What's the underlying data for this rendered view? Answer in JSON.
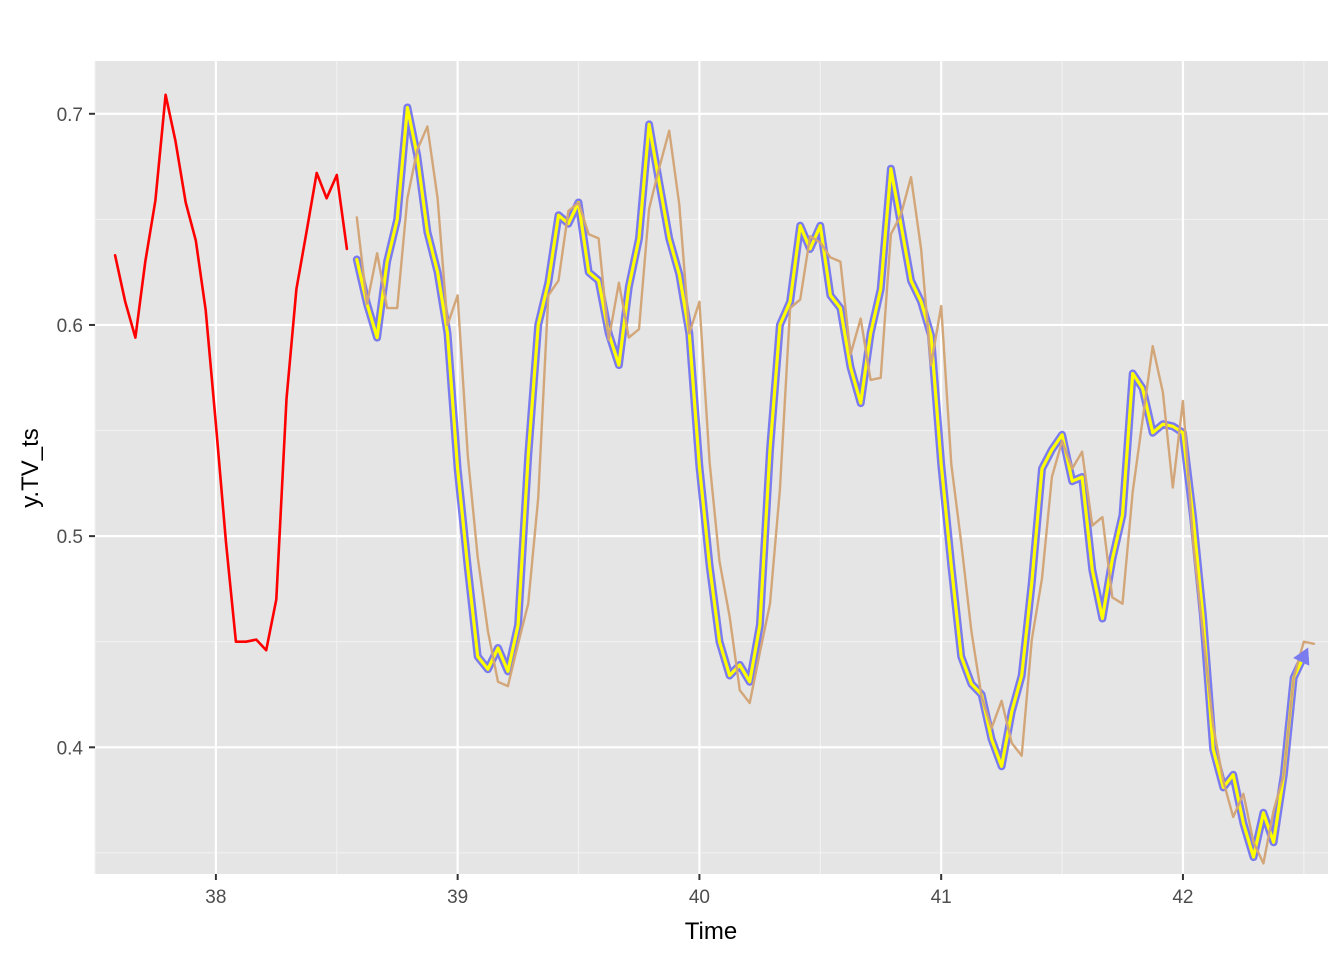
{
  "chart_data": {
    "type": "line",
    "xlabel": "Time",
    "ylabel": "y.TV_ts",
    "xlim": [
      37.5,
      42.6
    ],
    "ylim": [
      0.34,
      0.725
    ],
    "x_ticks": [
      38,
      39,
      40,
      41,
      42
    ],
    "y_ticks": [
      0.4,
      0.5,
      0.6,
      0.7
    ],
    "x_tick_labels": [
      "38",
      "39",
      "40",
      "41",
      "42"
    ],
    "y_tick_labels": [
      "0.4",
      "0.5",
      "0.6",
      "0.7"
    ],
    "grid": true,
    "panel_background": "#e5e5e5",
    "series": [
      {
        "color": "#ff0000",
        "x": [
          37.583,
          37.625,
          37.667,
          37.708,
          37.75,
          37.792,
          37.833,
          37.875,
          37.917,
          37.958,
          38.0,
          38.042,
          38.083,
          38.125,
          38.167,
          38.208,
          38.25,
          38.292,
          38.333,
          38.375,
          38.417,
          38.458,
          38.5,
          38.542
        ],
        "y": [
          0.633,
          0.611,
          0.594,
          0.63,
          0.659,
          0.709,
          0.687,
          0.658,
          0.64,
          0.607,
          0.553,
          0.497,
          0.45,
          0.45,
          0.451,
          0.446,
          0.47,
          0.565,
          0.617,
          0.644,
          0.672,
          0.66,
          0.671,
          0.636
        ]
      },
      {
        "color": "#7b7bf0",
        "x": [
          38.583,
          38.625,
          38.667,
          38.708,
          38.75,
          38.792,
          38.833,
          38.875,
          38.917,
          38.958,
          39.0,
          39.042,
          39.083,
          39.125,
          39.167,
          39.208,
          39.25,
          39.292,
          39.333,
          39.375,
          39.417,
          39.458,
          39.5,
          39.542,
          39.583,
          39.625,
          39.667,
          39.708,
          39.75,
          39.792,
          39.833,
          39.875,
          39.917,
          39.958,
          40.0,
          40.042,
          40.083,
          40.125,
          40.167,
          40.208,
          40.25,
          40.292,
          40.333,
          40.375,
          40.417,
          40.458,
          40.5,
          40.542,
          40.583,
          40.625,
          40.667,
          40.708,
          40.75,
          40.792,
          40.833,
          40.875,
          40.917,
          40.958,
          41.0,
          41.042,
          41.083,
          41.125,
          41.167,
          41.208,
          41.25,
          41.292,
          41.333,
          41.375,
          41.417,
          41.458,
          41.5,
          41.542,
          41.583,
          41.625,
          41.667,
          41.708,
          41.75,
          41.792,
          41.833,
          41.875,
          41.917,
          41.958,
          42.0,
          42.042,
          42.083,
          42.125,
          42.167,
          42.208,
          42.25,
          42.292,
          42.333,
          42.375,
          42.417,
          42.458,
          42.5
        ],
        "y": [
          0.631,
          0.61,
          0.594,
          0.63,
          0.65,
          0.703,
          0.68,
          0.644,
          0.625,
          0.596,
          0.532,
          0.485,
          0.443,
          0.437,
          0.447,
          0.436,
          0.458,
          0.538,
          0.6,
          0.62,
          0.652,
          0.648,
          0.658,
          0.625,
          0.621,
          0.596,
          0.581,
          0.618,
          0.641,
          0.695,
          0.668,
          0.641,
          0.624,
          0.596,
          0.533,
          0.486,
          0.45,
          0.434,
          0.439,
          0.431,
          0.458,
          0.541,
          0.6,
          0.611,
          0.647,
          0.636,
          0.647,
          0.614,
          0.608,
          0.58,
          0.563,
          0.596,
          0.617,
          0.674,
          0.648,
          0.621,
          0.611,
          0.595,
          0.534,
          0.486,
          0.443,
          0.43,
          0.425,
          0.404,
          0.391,
          0.417,
          0.434,
          0.478,
          0.532,
          0.541,
          0.548,
          0.526,
          0.528,
          0.484,
          0.461,
          0.489,
          0.51,
          0.577,
          0.57,
          0.549,
          0.553,
          0.552,
          0.549,
          0.509,
          0.462,
          0.399,
          0.381,
          0.387,
          0.364,
          0.348,
          0.369,
          0.355,
          0.387,
          0.433,
          0.443
        ]
      },
      {
        "color": "#ffff00",
        "x": [
          38.583,
          38.625,
          38.667,
          38.708,
          38.75,
          38.792,
          38.833,
          38.875,
          38.917,
          38.958,
          39.0,
          39.042,
          39.083,
          39.125,
          39.167,
          39.208,
          39.25,
          39.292,
          39.333,
          39.375,
          39.417,
          39.458,
          39.5,
          39.542,
          39.583,
          39.625,
          39.667,
          39.708,
          39.75,
          39.792,
          39.833,
          39.875,
          39.917,
          39.958,
          40.0,
          40.042,
          40.083,
          40.125,
          40.167,
          40.208,
          40.25,
          40.292,
          40.333,
          40.375,
          40.417,
          40.458,
          40.5,
          40.542,
          40.583,
          40.625,
          40.667,
          40.708,
          40.75,
          40.792,
          40.833,
          40.875,
          40.917,
          40.958,
          41.0,
          41.042,
          41.083,
          41.125,
          41.167,
          41.208,
          41.25,
          41.292,
          41.333,
          41.375,
          41.417,
          41.458,
          41.5,
          41.542,
          41.583,
          41.625,
          41.667,
          41.708,
          41.75,
          41.792,
          41.833,
          41.875,
          41.917,
          41.958,
          42.0,
          42.042,
          42.083,
          42.125,
          42.167,
          42.208,
          42.25,
          42.292,
          42.333,
          42.375,
          42.417,
          42.458,
          42.5
        ],
        "y": [
          0.631,
          0.61,
          0.594,
          0.63,
          0.65,
          0.703,
          0.68,
          0.644,
          0.625,
          0.596,
          0.532,
          0.485,
          0.443,
          0.437,
          0.447,
          0.436,
          0.458,
          0.538,
          0.6,
          0.62,
          0.652,
          0.648,
          0.658,
          0.625,
          0.621,
          0.596,
          0.581,
          0.618,
          0.641,
          0.695,
          0.668,
          0.641,
          0.624,
          0.596,
          0.533,
          0.486,
          0.45,
          0.434,
          0.439,
          0.431,
          0.458,
          0.541,
          0.6,
          0.611,
          0.647,
          0.636,
          0.647,
          0.614,
          0.608,
          0.58,
          0.563,
          0.596,
          0.617,
          0.674,
          0.648,
          0.621,
          0.611,
          0.595,
          0.534,
          0.486,
          0.443,
          0.43,
          0.425,
          0.404,
          0.391,
          0.417,
          0.434,
          0.478,
          0.532,
          0.541,
          0.548,
          0.526,
          0.528,
          0.484,
          0.461,
          0.489,
          0.51,
          0.577,
          0.57,
          0.549,
          0.553,
          0.552,
          0.549,
          0.509,
          0.462,
          0.399,
          0.381,
          0.387,
          0.364,
          0.348,
          0.369,
          0.355,
          0.387,
          0.433,
          0.443
        ]
      },
      {
        "color": "#d2a679",
        "x": [
          38.583,
          38.625,
          38.667,
          38.708,
          38.75,
          38.792,
          38.833,
          38.875,
          38.917,
          38.958,
          39.0,
          39.042,
          39.083,
          39.125,
          39.167,
          39.208,
          39.25,
          39.292,
          39.333,
          39.375,
          39.417,
          39.458,
          39.5,
          39.542,
          39.583,
          39.625,
          39.667,
          39.708,
          39.75,
          39.792,
          39.833,
          39.875,
          39.917,
          39.958,
          40.0,
          40.042,
          40.083,
          40.125,
          40.167,
          40.208,
          40.25,
          40.292,
          40.333,
          40.375,
          40.417,
          40.458,
          40.5,
          40.542,
          40.583,
          40.625,
          40.667,
          40.708,
          40.75,
          40.792,
          40.833,
          40.875,
          40.917,
          40.958,
          41.0,
          41.042,
          41.083,
          41.125,
          41.167,
          41.208,
          41.25,
          41.292,
          41.333,
          41.375,
          41.417,
          41.458,
          41.5,
          41.542,
          41.583,
          41.625,
          41.667,
          41.708,
          41.75,
          41.792,
          41.833,
          41.875,
          41.917,
          41.958,
          42.0,
          42.042,
          42.083,
          42.125,
          42.167,
          42.208,
          42.25,
          42.292,
          42.333,
          42.375,
          42.417,
          42.458,
          42.5,
          42.542
        ],
        "y": [
          0.651,
          0.61,
          0.634,
          0.608,
          0.608,
          0.66,
          0.683,
          0.694,
          0.66,
          0.6,
          0.614,
          0.538,
          0.49,
          0.455,
          0.431,
          0.429,
          0.449,
          0.468,
          0.518,
          0.614,
          0.621,
          0.654,
          0.658,
          0.643,
          0.641,
          0.593,
          0.62,
          0.594,
          0.598,
          0.655,
          0.674,
          0.692,
          0.657,
          0.596,
          0.611,
          0.535,
          0.488,
          0.462,
          0.427,
          0.421,
          0.445,
          0.468,
          0.522,
          0.608,
          0.612,
          0.642,
          0.639,
          0.632,
          0.63,
          0.586,
          0.603,
          0.574,
          0.575,
          0.643,
          0.652,
          0.67,
          0.636,
          0.581,
          0.609,
          0.534,
          0.497,
          0.455,
          0.424,
          0.409,
          0.422,
          0.402,
          0.396,
          0.451,
          0.48,
          0.528,
          0.545,
          0.532,
          0.54,
          0.505,
          0.509,
          0.471,
          0.468,
          0.521,
          0.555,
          0.59,
          0.568,
          0.523,
          0.564,
          0.497,
          0.454,
          0.41,
          0.384,
          0.367,
          0.378,
          0.355,
          0.345,
          0.37,
          0.387,
          0.433,
          0.45,
          0.449
        ]
      }
    ]
  }
}
